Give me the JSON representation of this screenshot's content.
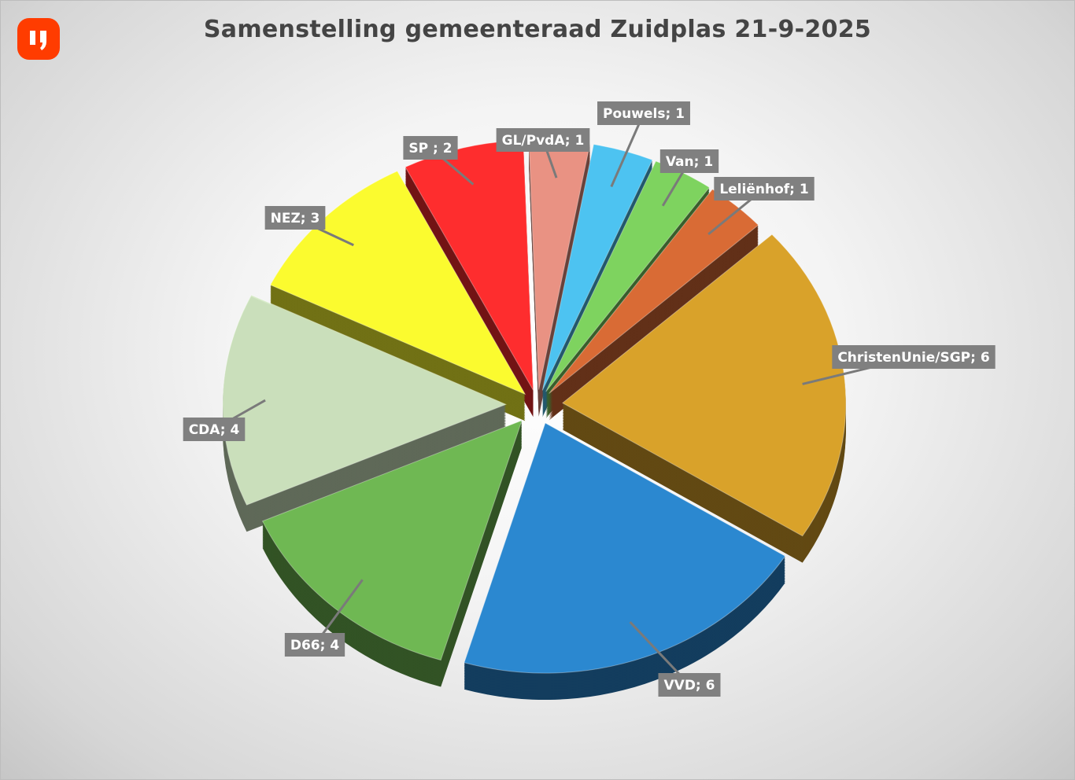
{
  "chart_data": {
    "type": "pie",
    "style": "3d-exploded",
    "title": "Samenstelling gemeenteraad  Zuidplas 21-9-2025",
    "categories": [
      "GL/PvdA",
      "Pouwels",
      "Van",
      "Leliënhof",
      "ChristenUnie/SGP",
      "VVD",
      "D66",
      "CDA",
      "NEZ",
      "SP "
    ],
    "values": [
      1,
      1,
      1,
      1,
      6,
      6,
      4,
      4,
      3,
      2
    ],
    "labels": [
      "GL/PvdA; 1",
      "Pouwels; 1",
      "Van; 1",
      "Leliënhof; 1",
      "ChristenUnie/SGP; 6",
      "VVD; 6",
      "D66; 4",
      "CDA; 4",
      "NEZ; 3",
      "SP ; 2"
    ],
    "colors": [
      "#e99283",
      "#4dc3f1",
      "#7ed35f",
      "#d96b35",
      "#d9a22a",
      "#2b88d0",
      "#6fb853",
      "#d4eac4",
      "#fbfb2f",
      "#fe2d2e"
    ],
    "label_box_color": "#808080",
    "legend": "none"
  },
  "logo": {
    "brand_color": "#ff3c00",
    "text": "IJ"
  }
}
